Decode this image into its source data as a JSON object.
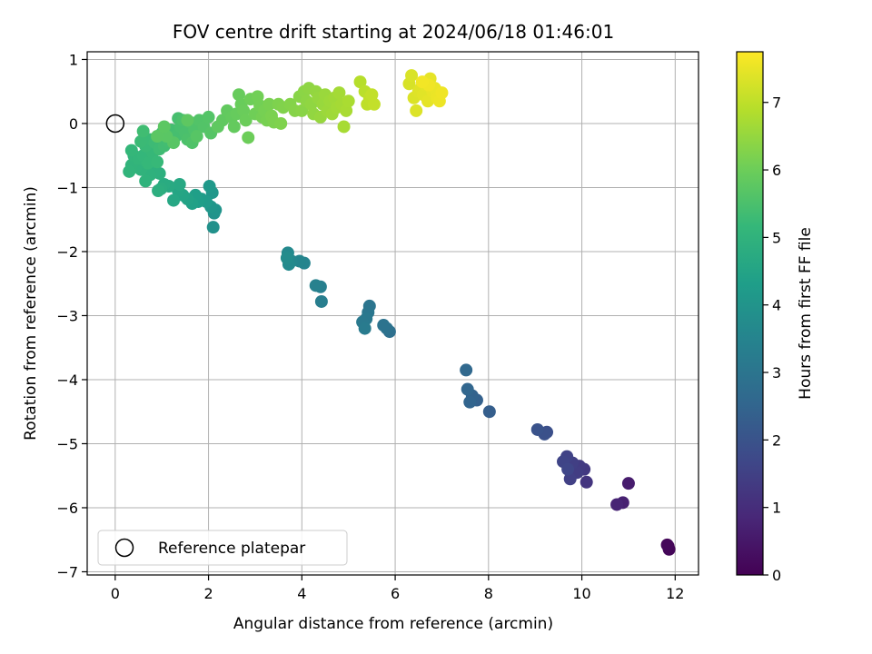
{
  "chart_data": {
    "type": "scatter",
    "title": "FOV centre drift starting at 2024/06/18 01:46:01",
    "xlabel": "Angular distance from reference (arcmin)",
    "ylabel": "Rotation from reference (arcmin)",
    "xlim": [
      -0.6,
      12.5
    ],
    "ylim": [
      -7.05,
      1.12
    ],
    "xticks": [
      0,
      2,
      4,
      6,
      8,
      10,
      12
    ],
    "yticks": [
      1,
      0,
      -1,
      -2,
      -3,
      -4,
      -5,
      -6,
      -7
    ],
    "grid": true,
    "legend": {
      "placement": "lower-left",
      "label": "Reference platepar"
    },
    "reference_point": {
      "x": 0,
      "y": 0
    },
    "colorbar": {
      "label": "Hours from first FF file",
      "min": 0,
      "max": 7.75,
      "ticks": [
        0,
        1,
        2,
        3,
        4,
        5,
        6,
        7
      ],
      "colormap": [
        "#440154",
        "#482878",
        "#3e4989",
        "#31688e",
        "#26828e",
        "#1f9e89",
        "#35b779",
        "#6ece58",
        "#b5de2b",
        "#fde725"
      ]
    },
    "series": [
      {
        "points": [
          [
            11.85,
            -6.6,
            0.05
          ],
          [
            11.87,
            -6.65,
            0.1
          ],
          [
            11.83,
            -6.58,
            0.15
          ],
          [
            11.0,
            -5.62,
            0.6
          ],
          [
            10.88,
            -5.92,
            0.7
          ],
          [
            10.75,
            -5.95,
            0.8
          ],
          [
            10.1,
            -5.6,
            1.2
          ],
          [
            10.05,
            -5.4,
            1.3
          ],
          [
            9.95,
            -5.35,
            1.35
          ],
          [
            9.9,
            -5.45,
            1.4
          ],
          [
            9.8,
            -5.3,
            1.45
          ],
          [
            9.75,
            -5.55,
            1.5
          ],
          [
            9.68,
            -5.2,
            1.55
          ],
          [
            9.6,
            -5.28,
            1.6
          ],
          [
            9.7,
            -5.4,
            1.65
          ],
          [
            9.25,
            -4.82,
            1.9
          ],
          [
            9.2,
            -4.85,
            1.95
          ],
          [
            9.05,
            -4.78,
            2.0
          ],
          [
            8.02,
            -4.5,
            2.3
          ],
          [
            7.75,
            -4.32,
            2.4
          ],
          [
            7.65,
            -4.25,
            2.45
          ],
          [
            7.6,
            -4.35,
            2.5
          ],
          [
            7.55,
            -4.15,
            2.55
          ],
          [
            7.52,
            -3.85,
            2.6
          ],
          [
            5.88,
            -3.25,
            2.85
          ],
          [
            5.82,
            -3.2,
            2.9
          ],
          [
            5.75,
            -3.15,
            2.95
          ],
          [
            5.45,
            -2.85,
            3.0
          ],
          [
            5.42,
            -2.95,
            3.05
          ],
          [
            5.38,
            -3.05,
            3.1
          ],
          [
            5.3,
            -3.1,
            3.15
          ],
          [
            5.35,
            -3.2,
            3.2
          ],
          [
            4.42,
            -2.78,
            3.3
          ],
          [
            4.4,
            -2.55,
            3.35
          ],
          [
            4.3,
            -2.53,
            3.4
          ],
          [
            4.05,
            -2.18,
            3.5
          ],
          [
            3.95,
            -2.15,
            3.55
          ],
          [
            3.78,
            -2.15,
            3.6
          ],
          [
            3.7,
            -2.02,
            3.65
          ],
          [
            3.72,
            -2.2,
            3.7
          ],
          [
            3.68,
            -2.1,
            3.75
          ],
          [
            2.1,
            -1.62,
            3.9
          ],
          [
            2.12,
            -1.4,
            3.95
          ],
          [
            2.15,
            -1.35,
            4.0
          ],
          [
            2.05,
            -1.3,
            4.05
          ],
          [
            2.08,
            -1.08,
            4.1
          ],
          [
            2.02,
            -0.98,
            4.15
          ],
          [
            1.95,
            -1.22,
            4.2
          ],
          [
            1.85,
            -1.18,
            4.25
          ],
          [
            1.78,
            -1.22,
            4.3
          ],
          [
            1.72,
            -1.12,
            4.35
          ],
          [
            1.65,
            -1.25,
            4.4
          ],
          [
            1.55,
            -1.18,
            4.45
          ],
          [
            1.45,
            -1.12,
            4.5
          ],
          [
            1.35,
            -1.05,
            4.55
          ],
          [
            1.25,
            -1.2,
            4.6
          ],
          [
            1.38,
            -0.95,
            4.65
          ],
          [
            1.15,
            -0.98,
            4.7
          ],
          [
            1.05,
            -0.95,
            4.75
          ],
          [
            0.98,
            -1.02,
            4.8
          ],
          [
            0.92,
            -1.05,
            4.85
          ],
          [
            0.95,
            -0.78,
            4.9
          ],
          [
            0.85,
            -0.75,
            4.92
          ],
          [
            0.75,
            -0.8,
            4.95
          ],
          [
            0.65,
            -0.9,
            4.98
          ],
          [
            0.55,
            -0.72,
            5.0
          ],
          [
            0.45,
            -0.68,
            5.02
          ],
          [
            0.35,
            -0.65,
            5.04
          ],
          [
            0.3,
            -0.75,
            5.06
          ],
          [
            0.4,
            -0.5,
            5.08
          ],
          [
            0.5,
            -0.55,
            5.1
          ],
          [
            0.6,
            -0.5,
            5.12
          ],
          [
            0.35,
            -0.42,
            5.14
          ],
          [
            0.7,
            -0.62,
            5.16
          ],
          [
            0.8,
            -0.45,
            5.18
          ],
          [
            0.9,
            -0.6,
            5.2
          ],
          [
            0.65,
            -0.35,
            5.22
          ],
          [
            0.75,
            -0.25,
            5.24
          ],
          [
            0.55,
            -0.28,
            5.26
          ],
          [
            0.85,
            -0.3,
            5.28
          ],
          [
            0.95,
            -0.4,
            5.3
          ],
          [
            1.0,
            -0.15,
            5.32
          ],
          [
            0.6,
            -0.12,
            5.34
          ],
          [
            1.05,
            -0.35,
            5.36
          ],
          [
            1.15,
            -0.28,
            5.38
          ],
          [
            1.2,
            -0.1,
            5.4
          ],
          [
            1.3,
            -0.2,
            5.42
          ],
          [
            1.35,
            0.08,
            5.44
          ],
          [
            1.4,
            -0.05,
            5.46
          ],
          [
            1.5,
            -0.15,
            5.48
          ],
          [
            1.45,
            0.05,
            5.5
          ],
          [
            1.55,
            -0.25,
            5.52
          ],
          [
            1.6,
            0.02,
            5.54
          ],
          [
            1.7,
            -0.1,
            5.56
          ],
          [
            1.65,
            -0.3,
            5.58
          ],
          [
            1.8,
            0.05,
            5.6
          ],
          [
            1.9,
            -0.05,
            5.62
          ],
          [
            2.0,
            0.1,
            5.64
          ],
          [
            2.05,
            -0.15,
            5.66
          ],
          [
            1.75,
            -0.2,
            5.68
          ],
          [
            1.25,
            -0.3,
            5.7
          ],
          [
            1.1,
            -0.2,
            5.72
          ],
          [
            0.9,
            -0.2,
            5.74
          ],
          [
            1.05,
            -0.05,
            5.76
          ],
          [
            1.55,
            0.05,
            5.78
          ],
          [
            2.2,
            -0.05,
            5.8
          ],
          [
            2.3,
            0.05,
            5.82
          ],
          [
            2.4,
            0.2,
            5.84
          ],
          [
            2.5,
            0.1,
            5.86
          ],
          [
            2.55,
            -0.05,
            5.88
          ],
          [
            2.6,
            0.15,
            5.9
          ],
          [
            2.65,
            0.45,
            5.92
          ],
          [
            2.7,
            0.3,
            5.94
          ],
          [
            2.75,
            0.2,
            5.96
          ],
          [
            2.8,
            0.05,
            5.98
          ],
          [
            2.85,
            -0.22,
            6.0
          ],
          [
            2.9,
            0.38,
            6.02
          ],
          [
            3.0,
            0.15,
            6.04
          ],
          [
            3.05,
            0.42,
            6.06
          ],
          [
            3.1,
            0.28,
            6.08
          ],
          [
            3.15,
            0.1,
            6.1
          ],
          [
            3.2,
            0.2,
            6.12
          ],
          [
            3.25,
            0.05,
            6.14
          ],
          [
            3.3,
            0.3,
            6.16
          ],
          [
            3.35,
            0.12,
            6.18
          ],
          [
            3.4,
            0.02,
            6.2
          ],
          [
            3.5,
            0.3,
            6.22
          ],
          [
            3.55,
            0.0,
            6.24
          ],
          [
            3.6,
            0.25,
            6.26
          ],
          [
            3.75,
            0.3,
            6.3
          ],
          [
            3.85,
            0.2,
            6.32
          ],
          [
            3.95,
            0.42,
            6.34
          ],
          [
            4.0,
            0.2,
            6.36
          ],
          [
            4.05,
            0.5,
            6.38
          ],
          [
            4.1,
            0.35,
            6.4
          ],
          [
            4.15,
            0.55,
            6.42
          ],
          [
            4.2,
            0.3,
            6.44
          ],
          [
            4.25,
            0.15,
            6.46
          ],
          [
            4.3,
            0.5,
            6.48
          ],
          [
            4.35,
            0.4,
            6.5
          ],
          [
            4.4,
            0.1,
            6.52
          ],
          [
            4.45,
            0.3,
            6.54
          ],
          [
            4.5,
            0.45,
            6.56
          ],
          [
            4.55,
            0.2,
            6.58
          ],
          [
            4.6,
            0.35,
            6.6
          ],
          [
            4.65,
            0.15,
            6.62
          ],
          [
            4.7,
            0.4,
            6.64
          ],
          [
            4.75,
            0.25,
            6.66
          ],
          [
            4.8,
            0.48,
            6.68
          ],
          [
            4.85,
            0.3,
            6.7
          ],
          [
            4.9,
            -0.05,
            6.72
          ],
          [
            4.95,
            0.2,
            6.74
          ],
          [
            5.0,
            0.35,
            6.76
          ],
          [
            5.25,
            0.65,
            6.9
          ],
          [
            5.35,
            0.5,
            6.95
          ],
          [
            5.4,
            0.3,
            7.0
          ],
          [
            5.45,
            0.4,
            7.02
          ],
          [
            5.5,
            0.45,
            7.04
          ],
          [
            5.55,
            0.3,
            7.06
          ],
          [
            6.3,
            0.62,
            7.3
          ],
          [
            6.35,
            0.75,
            7.32
          ],
          [
            6.4,
            0.4,
            7.34
          ],
          [
            6.45,
            0.2,
            7.36
          ],
          [
            6.5,
            0.5,
            7.38
          ],
          [
            6.55,
            0.55,
            7.4
          ],
          [
            6.6,
            0.45,
            7.42
          ],
          [
            6.65,
            0.6,
            7.44
          ],
          [
            6.7,
            0.35,
            7.46
          ],
          [
            6.75,
            0.7,
            7.48
          ],
          [
            6.8,
            0.5,
            7.5
          ],
          [
            6.85,
            0.55,
            7.52
          ],
          [
            6.9,
            0.4,
            7.54
          ],
          [
            6.95,
            0.35,
            7.56
          ],
          [
            7.0,
            0.48,
            7.58
          ],
          [
            6.72,
            0.6,
            7.6
          ],
          [
            6.58,
            0.65,
            7.62
          ]
        ]
      }
    ]
  }
}
